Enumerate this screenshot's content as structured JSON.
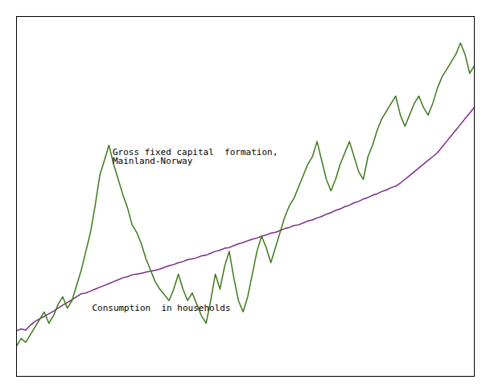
{
  "chart_data": {
    "type": "line",
    "series": [
      {
        "color": "#7b2d8b",
        "values": [
          72.0,
          72.5,
          72.2,
          73.5,
          74.5,
          75.2,
          75.8,
          76.5,
          77.2,
          78.0,
          78.8,
          79.5,
          80.2,
          81.0,
          81.8,
          82.0,
          82.5,
          83.0,
          83.5,
          84.0,
          84.5,
          85.0,
          85.5,
          86.0,
          86.3,
          86.8,
          87.0,
          87.2,
          87.5,
          87.8,
          88.0,
          88.3,
          88.8,
          89.2,
          89.5,
          90.0,
          90.3,
          90.8,
          91.0,
          91.3,
          91.8,
          92.0,
          92.5,
          93.0,
          93.3,
          93.8,
          94.0,
          94.5,
          95.0,
          95.3,
          95.8,
          96.2,
          96.5,
          97.0,
          97.3,
          97.8,
          98.0,
          98.5,
          99.0,
          99.3,
          99.8,
          100.0,
          100.5,
          101.0,
          101.3,
          101.8,
          102.2,
          102.8,
          103.2,
          103.8,
          104.2,
          104.8,
          105.2,
          105.8,
          106.2,
          106.8,
          107.2,
          107.8,
          108.2,
          108.8,
          109.2,
          109.8,
          110.2,
          111.0,
          112.0,
          113.0,
          114.0,
          115.0,
          116.0,
          117.0,
          118.0,
          119.0,
          120.5,
          122.0,
          123.5,
          125.0,
          126.5,
          128.0,
          129.5,
          131.0
        ]
      },
      {
        "color": "#3d7a1a",
        "values": [
          68.0,
          70.0,
          69.0,
          71.0,
          73.0,
          75.0,
          77.0,
          74.0,
          76.0,
          79.0,
          81.0,
          78.0,
          80.0,
          84.0,
          88.0,
          93.0,
          98.0,
          105.0,
          113.0,
          117.0,
          121.0,
          116.0,
          112.0,
          108.0,
          104.5,
          100.0,
          98.0,
          95.0,
          91.0,
          88.0,
          85.0,
          83.0,
          81.5,
          80.0,
          83.0,
          87.0,
          83.0,
          80.0,
          82.0,
          79.0,
          76.0,
          74.0,
          80.0,
          87.0,
          83.0,
          89.0,
          93.0,
          86.0,
          80.0,
          77.0,
          81.0,
          87.0,
          93.0,
          97.0,
          94.0,
          90.0,
          94.0,
          98.0,
          102.0,
          105.0,
          107.0,
          110.0,
          113.0,
          116.0,
          118.0,
          122.0,
          117.0,
          112.0,
          109.0,
          112.0,
          116.0,
          119.0,
          122.0,
          118.0,
          114.0,
          112.0,
          118.0,
          121.0,
          125.0,
          128.0,
          130.0,
          132.0,
          134.0,
          129.0,
          126.0,
          129.0,
          132.0,
          134.0,
          131.0,
          129.0,
          132.0,
          136.0,
          139.0,
          141.0,
          143.0,
          145.0,
          148.0,
          145.0,
          140.0,
          142.0
        ]
      }
    ],
    "xlim": [
      0,
      99
    ],
    "ylim": [
      60,
      155
    ],
    "xticks": [],
    "yticks": [],
    "tick_labels": false,
    "grid": false,
    "annotations": [
      "Gross fixed capital  formation,\nMainland-Norway",
      "Consumption  in households"
    ]
  }
}
